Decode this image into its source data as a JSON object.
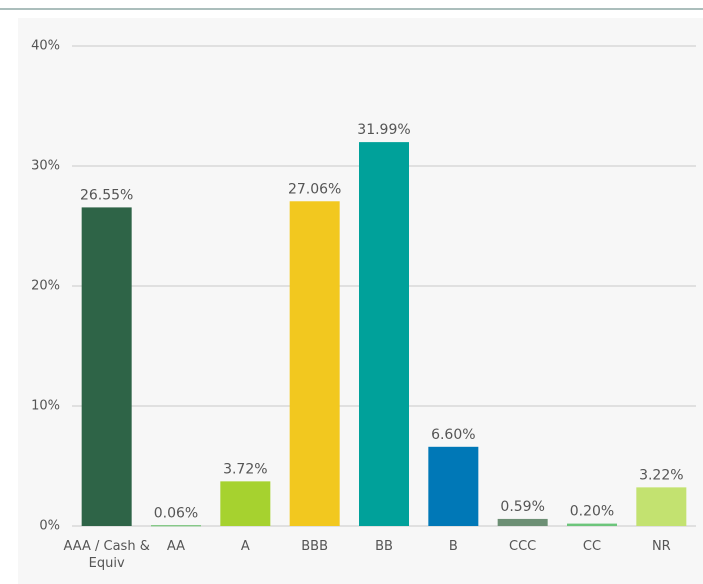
{
  "chart_data": {
    "type": "bar",
    "categories": [
      "AAA / Cash & Equiv",
      "AA",
      "A",
      "BBB",
      "BB",
      "B",
      "CCC",
      "CC",
      "NR"
    ],
    "values": [
      26.55,
      0.06,
      3.72,
      27.06,
      31.99,
      6.6,
      0.59,
      0.2,
      3.22
    ],
    "value_labels": [
      "26.55%",
      "0.06%",
      "3.72%",
      "27.06%",
      "31.99%",
      "6.60%",
      "0.59%",
      "0.20%",
      "3.22%"
    ],
    "colors": [
      "#2e6447",
      "#5bb85d",
      "#a6d22f",
      "#f2c81f",
      "#00a19a",
      "#0078b7",
      "#6c8f74",
      "#6cc57b",
      "#c3e270"
    ],
    "ylim": [
      0,
      40
    ],
    "yticks": [
      {
        "value": 0,
        "label": "0%"
      },
      {
        "value": 10,
        "label": "10%"
      },
      {
        "value": 20,
        "label": "20%"
      },
      {
        "value": 30,
        "label": "30%"
      },
      {
        "value": 40,
        "label": "40%"
      }
    ],
    "grid": true
  }
}
